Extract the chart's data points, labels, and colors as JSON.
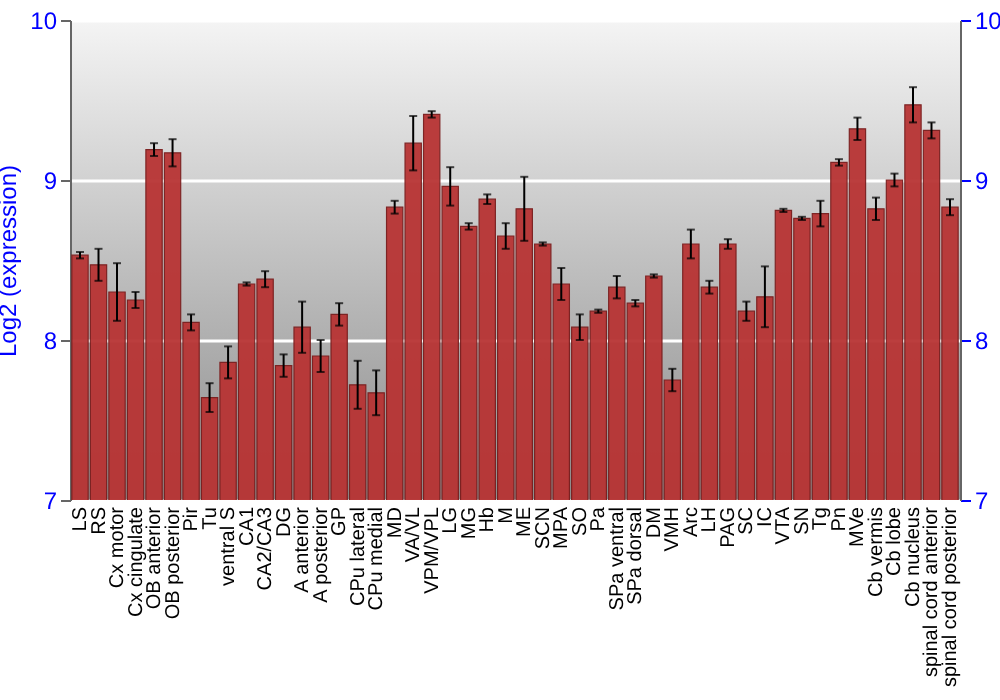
{
  "chart_data": {
    "type": "bar",
    "ylabel": "Log2 (expression)",
    "categories": [
      "LS",
      "RS",
      "Cx motor",
      "Cx cingulate",
      "OB anterior",
      "OB posterior",
      "Pir",
      "Tu",
      "ventral S",
      "CA1",
      "CA2/CA3",
      "DG",
      "A anterior",
      "A posterior",
      "GP",
      "CPu lateral",
      "CPu medial",
      "MD",
      "VA/VL",
      "VPM/VPL",
      "LG",
      "MG",
      "Hb",
      "M",
      "ME",
      "SCN",
      "MPA",
      "SO",
      "Pa",
      "SPa ventral",
      "SPa dorsal",
      "DM",
      "VMH",
      "Arc",
      "LH",
      "PAG",
      "SC",
      "IC",
      "VTA",
      "SN",
      "Tg",
      "Pn",
      "MVe",
      "Cb vermis",
      "Cb lobe",
      "Cb nucleus",
      "spinal cord anterior",
      "spinal cord posterior"
    ],
    "values": [
      8.53,
      8.47,
      8.3,
      8.25,
      9.19,
      9.17,
      8.11,
      7.64,
      7.86,
      8.35,
      8.38,
      7.84,
      8.08,
      7.9,
      8.16,
      7.72,
      7.67,
      8.83,
      9.23,
      9.41,
      8.96,
      8.71,
      8.88,
      8.65,
      8.82,
      8.6,
      8.35,
      8.08,
      8.18,
      8.33,
      8.23,
      8.4,
      7.75,
      8.6,
      8.33,
      8.6,
      8.18,
      8.27,
      8.81,
      8.76,
      8.79,
      9.11,
      9.32,
      8.82,
      9.0,
      9.47,
      9.31,
      8.83
    ],
    "errors": [
      0.02,
      0.1,
      0.18,
      0.05,
      0.04,
      0.085,
      0.05,
      0.09,
      0.1,
      0.01,
      0.05,
      0.07,
      0.16,
      0.1,
      0.07,
      0.15,
      0.14,
      0.04,
      0.17,
      0.02,
      0.12,
      0.02,
      0.03,
      0.08,
      0.2,
      0.01,
      0.1,
      0.08,
      0.01,
      0.07,
      0.02,
      0.01,
      0.07,
      0.09,
      0.04,
      0.03,
      0.06,
      0.19,
      0.01,
      0.01,
      0.08,
      0.02,
      0.07,
      0.07,
      0.04,
      0.11,
      0.05,
      0.05
    ],
    "color": "#b83434",
    "ylim": [
      7,
      10
    ],
    "yticks": [
      7,
      8,
      9,
      10
    ],
    "y2lim": [
      7,
      10
    ],
    "y2ticks": [
      7,
      8,
      9,
      10
    ],
    "grid": "y"
  }
}
